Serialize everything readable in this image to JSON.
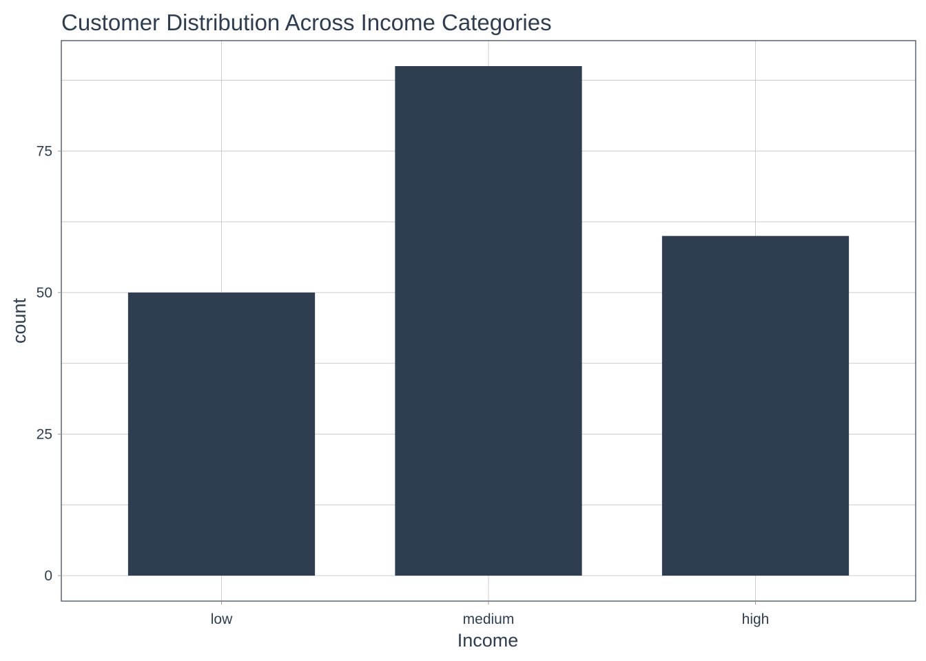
{
  "chart_data": {
    "type": "bar",
    "title": "Customer Distribution Across Income Categories",
    "xlabel": "Income",
    "ylabel": "count",
    "categories": [
      "low",
      "medium",
      "high"
    ],
    "values": [
      50,
      90,
      60
    ],
    "ylim": [
      -4.5,
      94.5
    ],
    "y_ticks": [
      0,
      25,
      50,
      75
    ],
    "y_tick_labels": [
      "0",
      "25",
      "50",
      "75"
    ],
    "y_minor_ticks": [
      12.5,
      37.5,
      62.5,
      87.5
    ],
    "grid": true,
    "bar_color": "#2e3e50",
    "text_color": "#2e3e50",
    "grid_color": "#cccccc"
  }
}
